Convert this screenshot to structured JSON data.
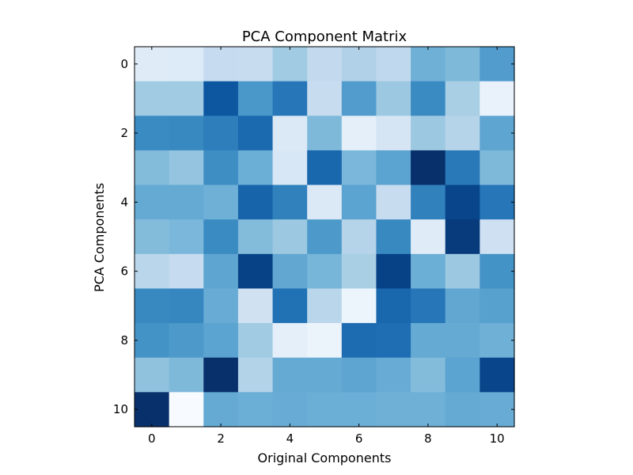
{
  "chart_data": {
    "type": "heatmap",
    "title": "PCA Component Matrix",
    "xlabel": "Original Components",
    "ylabel": "PCA Components",
    "colormap": "Blues",
    "value_range": [
      0,
      1
    ],
    "grid": false,
    "legend": "none",
    "x_ticks": [
      0,
      2,
      4,
      6,
      8,
      10
    ],
    "y_ticks": [
      0,
      2,
      4,
      6,
      8,
      10
    ],
    "rows": 11,
    "cols": 11,
    "values": [
      [
        0.12,
        0.13,
        0.25,
        0.24,
        0.37,
        0.26,
        0.32,
        0.27,
        0.49,
        0.45,
        0.58
      ],
      [
        0.37,
        0.37,
        0.85,
        0.6,
        0.73,
        0.24,
        0.58,
        0.38,
        0.65,
        0.34,
        0.07
      ],
      [
        0.65,
        0.66,
        0.7,
        0.78,
        0.14,
        0.45,
        0.09,
        0.17,
        0.38,
        0.3,
        0.54
      ],
      [
        0.44,
        0.4,
        0.64,
        0.5,
        0.16,
        0.79,
        0.46,
        0.55,
        1.0,
        0.72,
        0.45
      ],
      [
        0.52,
        0.52,
        0.49,
        0.8,
        0.69,
        0.14,
        0.55,
        0.24,
        0.69,
        0.92,
        0.73
      ],
      [
        0.44,
        0.46,
        0.65,
        0.44,
        0.38,
        0.59,
        0.3,
        0.66,
        0.12,
        0.96,
        0.21
      ],
      [
        0.29,
        0.25,
        0.54,
        0.93,
        0.53,
        0.47,
        0.34,
        0.93,
        0.5,
        0.38,
        0.62
      ],
      [
        0.66,
        0.67,
        0.51,
        0.2,
        0.75,
        0.29,
        0.05,
        0.79,
        0.73,
        0.53,
        0.56
      ],
      [
        0.62,
        0.59,
        0.55,
        0.37,
        0.09,
        0.06,
        0.77,
        0.76,
        0.52,
        0.52,
        0.49
      ],
      [
        0.41,
        0.45,
        1.0,
        0.31,
        0.52,
        0.52,
        0.54,
        0.51,
        0.44,
        0.55,
        0.92
      ],
      [
        1.0,
        0.0,
        0.52,
        0.5,
        0.51,
        0.5,
        0.5,
        0.49,
        0.49,
        0.52,
        0.51
      ]
    ]
  }
}
